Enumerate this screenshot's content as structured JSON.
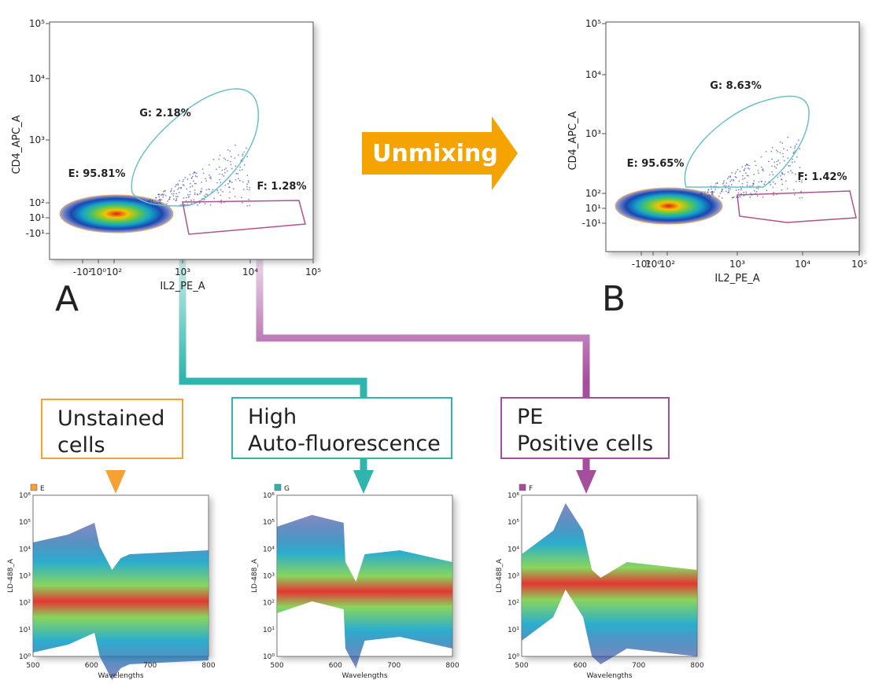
{
  "plots": [
    {
      "label": "A",
      "x_axis": "IL2_PE_A",
      "y_axis": "CD4_APC_A",
      "xticks": [
        "-10²",
        "10⁰",
        "10²",
        "10³",
        "10⁴",
        "10⁵"
      ],
      "yticks": [
        "10⁵",
        "10⁴",
        "10³",
        "10²",
        "10¹",
        "-10¹"
      ],
      "gates": [
        "G: 2.18%",
        "E: 95.81%",
        "F: 1.28%"
      ]
    },
    {
      "label": "B",
      "x_axis": "IL2_PE_A",
      "y_axis": "CD4_APC_A",
      "xticks": [
        "-10²",
        "10⁰",
        "10²",
        "10³",
        "10⁴",
        "10⁵"
      ],
      "yticks": [
        "10⁵",
        "10⁴",
        "10³",
        "10²",
        "10¹",
        "-10¹"
      ],
      "gates": [
        "G: 8.63%",
        "E: 95.65%",
        "F: 1.42%"
      ]
    }
  ],
  "arrow": "Unmixing",
  "populations": [
    {
      "lines": [
        "Unstained",
        "cells"
      ]
    },
    {
      "lines": [
        "High",
        "Auto-fluorescence"
      ]
    },
    {
      "lines": [
        "PE",
        "Positive cells"
      ]
    }
  ],
  "spectra": [
    {
      "gate": "E",
      "y_axis": "LD-488_A",
      "x_axis": "Wavelengths",
      "yticks": [
        "10⁶",
        "10⁵",
        "10⁴",
        "10³",
        "10²",
        "10¹",
        "10⁰"
      ],
      "xticks": [
        "500",
        "600",
        "700",
        "800"
      ]
    },
    {
      "gate": "G",
      "y_axis": "LD-488_A",
      "x_axis": "Wavelengths",
      "yticks": [
        "10⁶",
        "10⁵",
        "10⁴",
        "10³",
        "10²",
        "10¹",
        "10⁰"
      ],
      "xticks": [
        "500",
        "600",
        "700",
        "800"
      ]
    },
    {
      "gate": "F",
      "y_axis": "LD-488_A",
      "x_axis": "Wavelengths",
      "yticks": [
        "10⁶",
        "10⁵",
        "10⁴",
        "10³",
        "10²",
        "10¹",
        "10⁰"
      ],
      "xticks": [
        "500",
        "600",
        "700",
        "800"
      ]
    }
  ]
}
